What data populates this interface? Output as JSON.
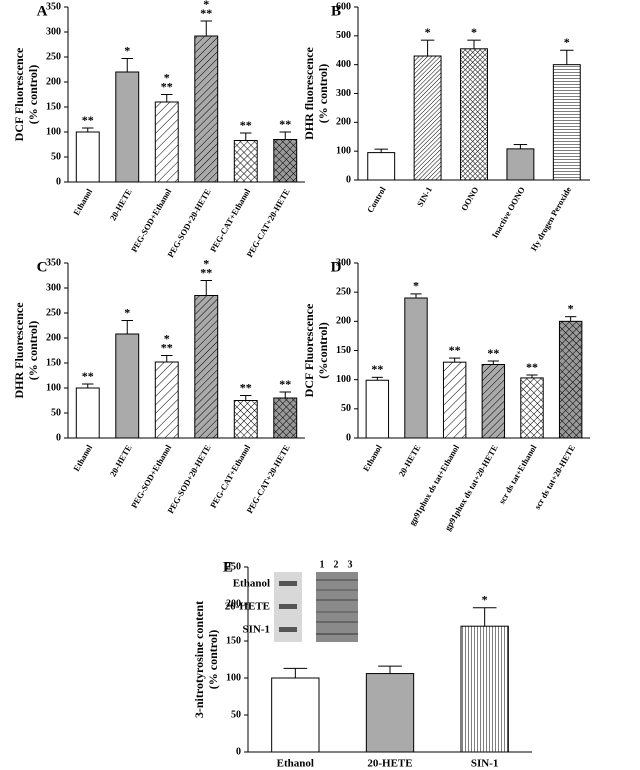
{
  "chart_data": [
    {
      "type": "bar",
      "panel": "A",
      "ylabel": [
        "DCF Fluorescence",
        "(% control)"
      ],
      "categories": [
        "Ethanol",
        "20-HETE",
        "PEG-SOD+Ethanol",
        "PEG-SOD+20-HETE",
        "PEG-CAT+Ethanol",
        "PEG-CAT+20-HETE"
      ],
      "values": [
        100,
        220,
        160,
        292,
        83,
        85
      ],
      "errors": [
        8,
        27,
        15,
        30,
        15,
        15
      ],
      "patterns": [
        "white",
        "gray",
        "hatch",
        "hatch-gray",
        "cross",
        "cross-gray"
      ],
      "annotations": [
        [
          "**"
        ],
        [
          "*"
        ],
        [
          "*",
          "**"
        ],
        [
          "*",
          "**"
        ],
        [
          "**"
        ],
        [
          "**"
        ]
      ],
      "ylim": [
        0,
        350
      ],
      "yticks": [
        0,
        50,
        100,
        150,
        200,
        250,
        300,
        350
      ],
      "label_rotation": true
    },
    {
      "type": "bar",
      "panel": "B",
      "ylabel": [
        "DHR fluorescence",
        "(% control)"
      ],
      "categories": [
        "Control",
        "SIN-1",
        "OONO",
        "Inactive OONO",
        "Hy drogen Peroxide"
      ],
      "values": [
        95,
        430,
        455,
        108,
        400
      ],
      "errors": [
        12,
        55,
        30,
        15,
        50
      ],
      "patterns": [
        "white",
        "diag-dense",
        "check",
        "gray",
        "horizontal"
      ],
      "annotations": [
        [],
        [
          "*"
        ],
        [
          "*"
        ],
        [],
        [
          "*"
        ]
      ],
      "ylim": [
        0,
        600
      ],
      "yticks": [
        0,
        100,
        200,
        300,
        400,
        500,
        600
      ],
      "label_rotation": true
    },
    {
      "type": "bar",
      "panel": "C",
      "ylabel": [
        "DHR Fluorescence",
        "(% control)"
      ],
      "categories": [
        "Ethanol",
        "20-HETE",
        "PEG-SOD+Ethanol",
        "PEG-SOD+20-HETE",
        "PEG-CAT+Ethanol",
        "PEG-CAT+20-HETE"
      ],
      "values": [
        100,
        208,
        152,
        285,
        75,
        80
      ],
      "errors": [
        8,
        27,
        13,
        30,
        10,
        12
      ],
      "patterns": [
        "white",
        "gray",
        "hatch",
        "hatch-gray",
        "cross",
        "cross-gray"
      ],
      "annotations": [
        [
          "**"
        ],
        [
          "*"
        ],
        [
          "*",
          "**"
        ],
        [
          "*",
          "**"
        ],
        [
          "**"
        ],
        [
          "**"
        ]
      ],
      "ylim": [
        0,
        350
      ],
      "yticks": [
        0,
        50,
        100,
        150,
        200,
        250,
        300,
        350
      ],
      "label_rotation": true
    },
    {
      "type": "bar",
      "panel": "D",
      "ylabel": [
        "DCF Fluorescence",
        "(%control)"
      ],
      "categories": [
        "Ethanol",
        "20-HETE",
        "gp91phox ds tat+Ethanol",
        "gp91phox ds tat+20-HETE",
        "scr ds tat+Ethanol",
        "scr ds tat+20-HETE"
      ],
      "values": [
        99,
        240,
        130,
        126,
        103,
        200
      ],
      "errors": [
        5,
        7,
        7,
        6,
        5,
        8
      ],
      "patterns": [
        "white",
        "gray",
        "hatch",
        "hatch-gray",
        "cross",
        "cross-gray"
      ],
      "annotations": [
        [
          "**"
        ],
        [
          "*"
        ],
        [
          "**"
        ],
        [
          "**"
        ],
        [
          "**"
        ],
        [
          "*"
        ]
      ],
      "ylim": [
        0,
        300
      ],
      "yticks": [
        0,
        50,
        100,
        150,
        200,
        250,
        300
      ],
      "label_rotation": true
    },
    {
      "type": "bar",
      "panel": "E",
      "ylabel": [
        "3-nitrotyrosine content",
        "(% control)"
      ],
      "categories": [
        "Ethanol",
        "20-HETE",
        "SIN-1"
      ],
      "values": [
        100,
        106,
        170
      ],
      "errors": [
        13,
        10,
        25
      ],
      "patterns": [
        "white",
        "gray",
        "vertical"
      ],
      "annotations": [
        [],
        [],
        [
          "*"
        ]
      ],
      "ylim": [
        0,
        250
      ],
      "yticks": [
        0,
        50,
        100,
        150,
        200,
        250
      ],
      "label_rotation": false,
      "inset": {
        "labels": [
          "Ethanol",
          "20-HETE",
          "SIN-1"
        ],
        "lanes": [
          1,
          2,
          3
        ]
      }
    }
  ]
}
